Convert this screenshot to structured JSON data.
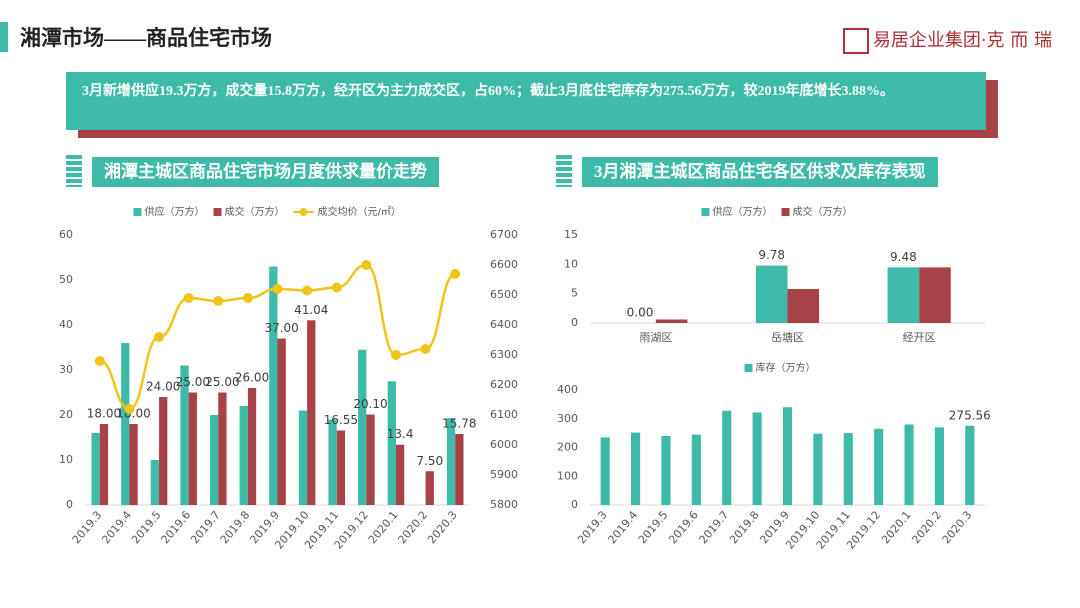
{
  "header": {
    "title": "湘潭市场——商品住宅市场",
    "logo": "易居企业集团·克 而 瑞"
  },
  "summary": "3月新增供应19.3万方，成交量15.8万方，经开区为主力成交区，占60%；截止3月底住宅库存为275.56万方，较2019年底增长3.88%。",
  "sections": [
    "湘潭主城区商品住宅市场月度供求量价走势",
    "3月湘潭主城区商品住宅各区供求及库存表现"
  ],
  "chart_data": [
    {
      "type": "bar",
      "categories": [
        "2019.3",
        "2019.4",
        "2019.5",
        "2019.6",
        "2019.7",
        "2019.8",
        "2019.9",
        "2019.10",
        "2019.11",
        "2019.12",
        "2020.1",
        "2020.2",
        "2020.3"
      ],
      "series": [
        {
          "name": "供应（万方）",
          "color": "#3dbaa8",
          "values": [
            16,
            36,
            10,
            31,
            20,
            22,
            53,
            21,
            19,
            34.5,
            27.5,
            null,
            19.3
          ]
        },
        {
          "name": "成交（万方）",
          "color": "#a84248",
          "values": [
            18,
            18,
            24,
            25,
            25,
            26,
            37,
            41.04,
            16.55,
            20.1,
            13.4,
            7.5,
            15.78
          ],
          "value_labels": [
            "18.00",
            "18.00",
            "24.00",
            "25.00",
            "25.00",
            "26.00",
            "37.00",
            "41.04",
            "16.55",
            "20.10",
            "13.4",
            "7.50",
            "15.78"
          ]
        },
        {
          "name": "成交均价（元/㎡）",
          "color": "#f0c419",
          "type": "line",
          "axis": "y2",
          "values": [
            6280,
            6120,
            6360,
            6490,
            6480,
            6490,
            6520,
            6515,
            6525,
            6600,
            6300,
            6320,
            6570
          ]
        }
      ],
      "ylim": [
        0,
        60
      ],
      "yticks": [
        0,
        10,
        20,
        30,
        40,
        50,
        60
      ],
      "y2lim": [
        5800,
        6700
      ],
      "y2ticks": [
        5800,
        5900,
        6000,
        6100,
        6200,
        6300,
        6400,
        6500,
        6600,
        6700
      ]
    },
    {
      "type": "bar",
      "categories": [
        "雨湖区",
        "岳塘区",
        "经开区"
      ],
      "series": [
        {
          "name": "供应（万方）",
          "color": "#3dbaa8",
          "values": [
            0,
            9.78,
            9.48
          ],
          "value_labels": [
            "0.00",
            "9.78",
            "9.48"
          ]
        },
        {
          "name": "成交（万方）",
          "color": "#a84248",
          "values": [
            0.6,
            5.8,
            9.48
          ]
        }
      ],
      "ylim": [
        0,
        15
      ],
      "yticks": [
        0,
        5,
        10,
        15
      ]
    },
    {
      "type": "bar",
      "categories": [
        "2019.3",
        "2019.4",
        "2019.5",
        "2019.6",
        "2019.7",
        "2019.8",
        "2019.9",
        "2019.10",
        "2019.11",
        "2019.12",
        "2020.1",
        "2020.2",
        "2020.3"
      ],
      "series": [
        {
          "name": "库存（万方）",
          "color": "#3dbaa8",
          "values": [
            235,
            252,
            240,
            245,
            328,
            322,
            340,
            248,
            250,
            265,
            280,
            270,
            275.56
          ],
          "value_labels": [
            null,
            null,
            null,
            null,
            null,
            null,
            null,
            null,
            null,
            null,
            null,
            null,
            "275.56"
          ]
        }
      ],
      "ylim": [
        0,
        400
      ],
      "yticks": [
        0,
        100,
        200,
        300,
        400
      ]
    }
  ]
}
